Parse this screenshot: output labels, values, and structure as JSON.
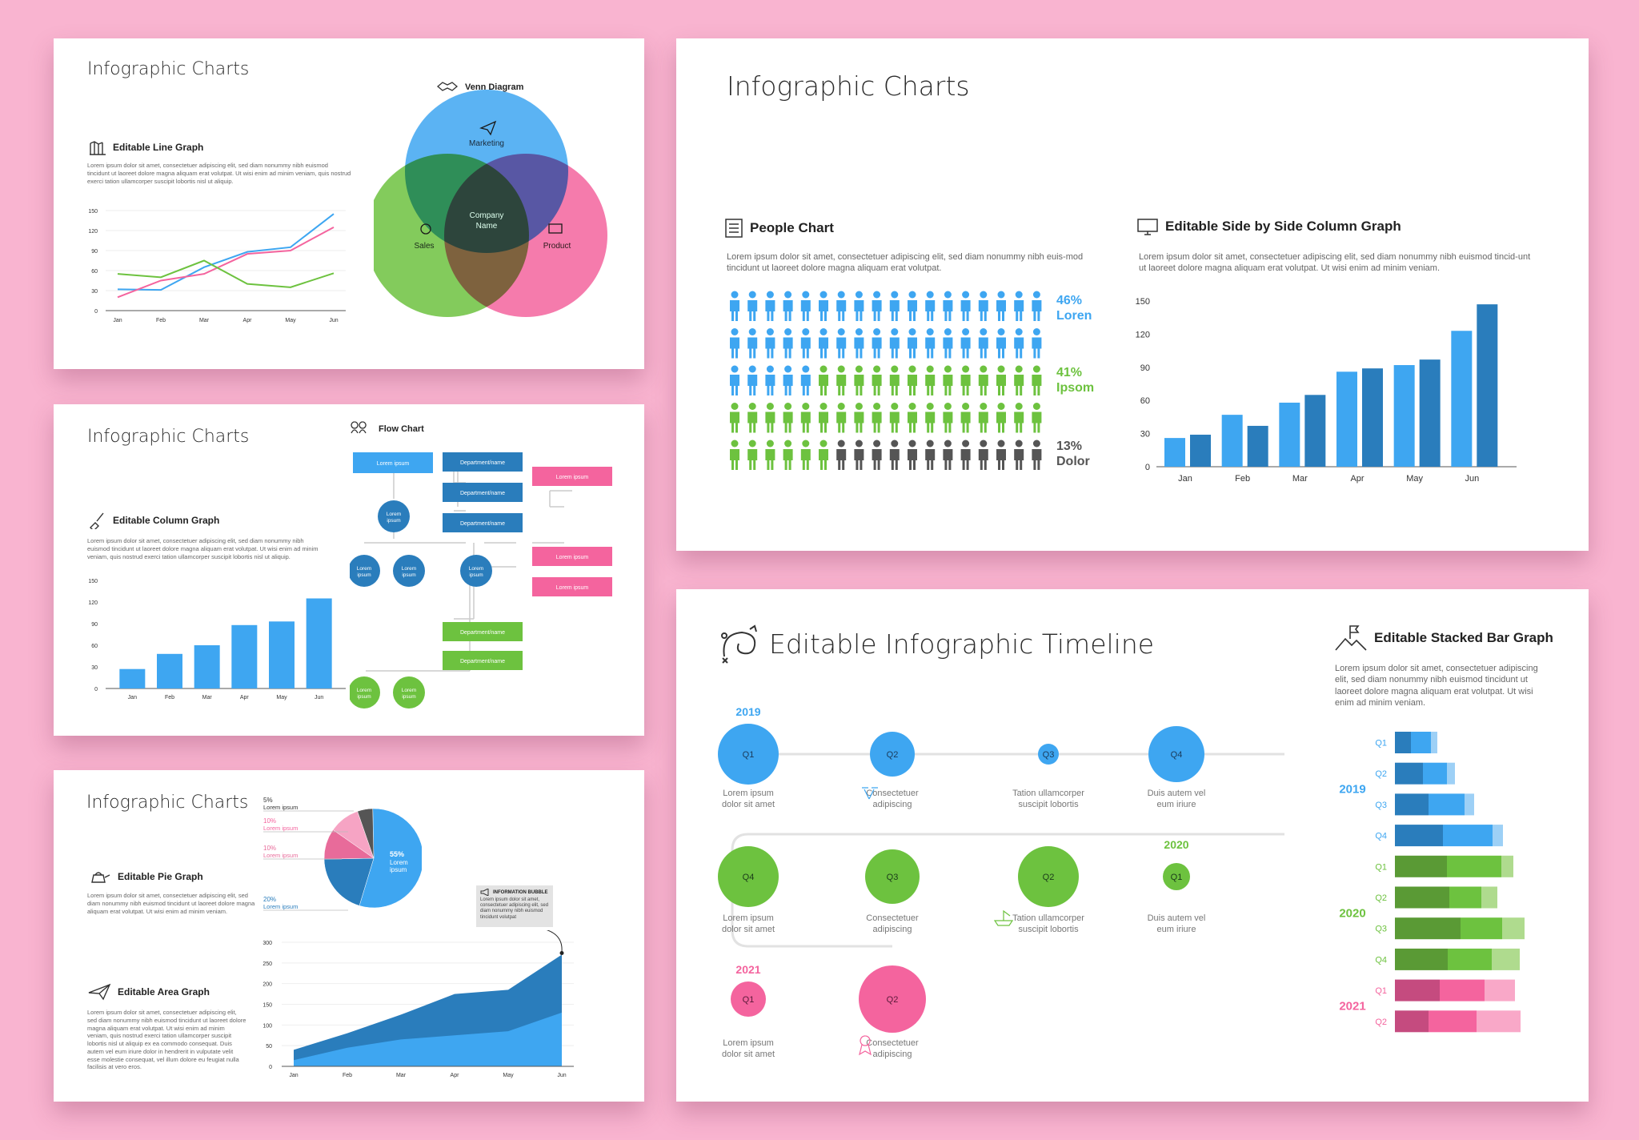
{
  "colors": {
    "blue": "#3ea6f1",
    "darkblue": "#2a7dbc",
    "green": "#6dc23f",
    "darkgreen": "#5a9a35",
    "pink": "#f4649e",
    "lightpink": "#f9a8c8",
    "lightblue": "#9dd0f6",
    "lightgreen": "#afdb8e",
    "gray": "#555555",
    "background": "#f9b4d0"
  },
  "s1": {
    "title": "Infographic Charts",
    "line": {
      "heading": "Editable Line Graph",
      "icon": "chart-icon",
      "desc": "Lorem ipsum dolor sit amet, consectetuer adipiscing elit, sed diam nonummy nibh euismod tincidunt ut laoreet dolore magna aliquam erat volutpat. Ut wisi enim ad minim veniam, quis nostrud exerci tation ullamcorper suscipit lobortis nisl ut aliquip."
    },
    "venn": {
      "heading": "Venn Diagram",
      "icon": "handshake-icon",
      "marketing": "Marketing",
      "sales": "Sales",
      "product": "Product",
      "center": [
        "Company",
        "Name"
      ]
    }
  },
  "s2": {
    "title": "Infographic Charts",
    "column": {
      "heading": "Editable Column Graph",
      "icon": "paintbrush-icon",
      "desc": "Lorem ipsum dolor sit amet, consectetuer adipiscing elit, sed diam nonummy nibh euismod tincidunt ut laoreet dolore magna aliquam erat volutpat. Ut wisi enim ad minim veniam, quis nostrud exerci tation ullamcorper suscipit lobortis nisl ut aliquip."
    },
    "flow": {
      "heading": "Flow Chart",
      "icon": "people-icon",
      "top": "Lorem ipsum",
      "dept": "Department/name",
      "pink": "Lorem ipsum",
      "circle": [
        "Lorem",
        "ipsum"
      ]
    }
  },
  "s3": {
    "title": "Infographic Charts",
    "pie": {
      "heading": "Editable Pie Graph",
      "icon": "kettle-icon",
      "desc": "Lorem ipsum dolor sit amet, consectetuer adipiscing elit, sed diam nonummy nibh euismod tincidunt ut laoreet dolore magna aliquam erat volutpat. Ut wisi enim ad minim veniam."
    },
    "area": {
      "heading": "Editable Area Graph",
      "icon": "paper-plane-icon",
      "desc": "Lorem ipsum dolor sit amet, consectetuer adipiscing elit, sed diam nonummy nibh euismod tincidunt ut laoreet dolore magna aliquam erat volutpat. Ut wisi enim ad minim veniam, quis nostrud exerci tation ullamcorper suscipit lobortis nisl ut aliquip ex ea commodo consequat. Duis autem vel eum iriure dolor in hendrerit in vulputate velit esse molestie consequat, vel illum dolore eu feugiat nulla facilisis at vero eros."
    },
    "bubble": {
      "title": "INFORMATION BUBBLE",
      "icon": "megaphone-icon",
      "text": "Lorem ipsum dolor sit amet, consectetuer adipiscing elit, sed diam nonummy nibh euismod tincidunt volutpat"
    }
  },
  "s4": {
    "title": "Infographic Charts",
    "people": {
      "heading": "People Chart",
      "icon": "list-icon",
      "desc": "Lorem ipsum dolor sit amet, consectetuer adipiscing elit, sed diam nonummy nibh euis-mod tincidunt ut laoreet dolore magna aliquam erat volutpat."
    },
    "side": {
      "heading": "Editable Side by Side Column Graph",
      "icon": "monitor-icon",
      "desc": "Lorem ipsum dolor sit amet, consectetuer adipiscing elit, sed diam nonummy nibh euismod tincid-unt ut laoreet dolore magna aliquam erat volutpat. Ut wisi enim ad minim veniam."
    }
  },
  "s5": {
    "title": "Editable Infographic Timeline",
    "icon": "strategy-icon",
    "stacked": {
      "heading": "Editable Stacked Bar Graph",
      "icon": "mountain-flag-icon",
      "desc": "Lorem ipsum dolor sit amet, consectetuer adipiscing elit, sed diam nonummy nibh euismod tincidunt ut laoreet dolore magna aliquam erat volutpat. Ut wisi enim ad minim veniam."
    },
    "timeline": {
      "years": [
        "2019",
        "2020",
        "2021"
      ],
      "row1": [
        {
          "q": "Q1",
          "text": [
            "Lorem ipsum",
            "dolor sit amet"
          ]
        },
        {
          "q": "Q2",
          "text": [
            "Consectetuer",
            "adipiscing"
          ],
          "icon": "toast-icon"
        },
        {
          "q": "Q3",
          "text": [
            "Tation ullamcorper",
            "suscipit lobortis"
          ]
        },
        {
          "q": "Q4",
          "text": [
            "Duis autem vel",
            "eum iriure"
          ]
        }
      ],
      "row2": [
        {
          "q": "Q4",
          "text": [
            "Lorem ipsum",
            "dolor sit amet"
          ]
        },
        {
          "q": "Q3",
          "text": [
            "Consectetuer",
            "adipiscing"
          ]
        },
        {
          "q": "Q2",
          "text": [
            "Tation ullamcorper",
            "suscipit lobortis"
          ],
          "icon": "boat-icon"
        },
        {
          "q": "Q1",
          "text": [
            "Duis autem vel",
            "eum iriure"
          ]
        }
      ],
      "row3": [
        {
          "q": "Q1",
          "text": [
            "Lorem ipsum",
            "dolor sit amet"
          ]
        },
        {
          "q": "Q2",
          "text": [
            "Consectetuer",
            "adipiscing"
          ],
          "icon": "award-icon"
        }
      ]
    }
  },
  "chart_data": [
    {
      "id": "line",
      "type": "line",
      "x": [
        "Jan",
        "Feb",
        "Mar",
        "Apr",
        "May",
        "Jun"
      ],
      "ylim": [
        0,
        150
      ],
      "yticks": [
        0,
        30,
        60,
        90,
        120,
        150
      ],
      "series": [
        {
          "color": "#3ea6f1",
          "values": [
            32,
            31,
            65,
            88,
            95,
            145
          ]
        },
        {
          "color": "#f4649e",
          "values": [
            20,
            45,
            55,
            85,
            90,
            125
          ]
        },
        {
          "color": "#6dc23f",
          "values": [
            55,
            50,
            75,
            40,
            35,
            56
          ]
        }
      ]
    },
    {
      "id": "column",
      "type": "bar",
      "categories": [
        "Jan",
        "Feb",
        "Mar",
        "Apr",
        "May",
        "Jun"
      ],
      "values": [
        27,
        48,
        60,
        88,
        93,
        125
      ],
      "ylim": [
        0,
        150
      ],
      "yticks": [
        0,
        30,
        60,
        90,
        120,
        150
      ]
    },
    {
      "id": "pie",
      "type": "pie",
      "slices": [
        {
          "value": 55,
          "label": "55%",
          "sublabel": [
            "Lorem",
            "ipsum"
          ],
          "color": "#3ea6f1"
        },
        {
          "value": 20,
          "label": "20%",
          "sublabel": "Lorem ipsum",
          "color": "#2a7dbc"
        },
        {
          "value": 10,
          "label": "10%",
          "sublabel": "Lorem ipsum",
          "color": "#e86b9a"
        },
        {
          "value": 10,
          "label": "10%",
          "sublabel": "Lorem ipsum",
          "color": "#f6a4c4"
        },
        {
          "value": 5,
          "label": "5%",
          "sublabel": "Lorem ipsum",
          "color": "#555555"
        }
      ]
    },
    {
      "id": "area",
      "type": "area",
      "x": [
        "Jan",
        "Feb",
        "Mar",
        "Apr",
        "May",
        "Jun"
      ],
      "ylim": [
        0,
        300
      ],
      "yticks": [
        0,
        50,
        100,
        150,
        200,
        250,
        300
      ],
      "series": [
        {
          "color": "#3ea6f1",
          "values": [
            15,
            45,
            65,
            75,
            85,
            130
          ]
        },
        {
          "color": "#2a7dbc",
          "values": [
            40,
            80,
            125,
            175,
            185,
            270
          ]
        }
      ]
    },
    {
      "id": "people",
      "type": "table",
      "rows": 5,
      "cols": 18,
      "counts": {
        "blue": 41,
        "green": 37,
        "gray": 12
      },
      "legend": [
        {
          "label": "46%",
          "name": "Loren",
          "color": "#3ea6f1"
        },
        {
          "label": "41%",
          "name": "Ipsom",
          "color": "#6dc23f"
        },
        {
          "label": "13%",
          "name": "Dolor",
          "color": "#555555"
        }
      ]
    },
    {
      "id": "sidebyside",
      "type": "bar",
      "categories": [
        "Jan",
        "Feb",
        "Mar",
        "Apr",
        "May",
        "Jun"
      ],
      "ylim": [
        0,
        150
      ],
      "yticks": [
        0,
        30,
        60,
        90,
        120,
        150
      ],
      "series": [
        {
          "color": "#3ea6f1",
          "values": [
            26,
            47,
            58,
            86,
            92,
            123
          ]
        },
        {
          "color": "#2a7dbc",
          "values": [
            29,
            37,
            65,
            89,
            97,
            147
          ]
        }
      ]
    },
    {
      "id": "stacked",
      "type": "bar",
      "orientation": "horizontal",
      "groups": [
        {
          "year": "2019",
          "color": "#3ea6f1"
        },
        {
          "year": "2020",
          "color": "#6dc23f"
        },
        {
          "year": "2021",
          "color": "#f4649e"
        }
      ],
      "rows": [
        {
          "year": "2019",
          "q": "Q1",
          "values": [
            20,
            25,
            8
          ]
        },
        {
          "year": "2019",
          "q": "Q2",
          "values": [
            35,
            30,
            10
          ]
        },
        {
          "year": "2019",
          "q": "Q3",
          "values": [
            42,
            45,
            12
          ]
        },
        {
          "year": "2019",
          "q": "Q4",
          "values": [
            60,
            62,
            13
          ]
        },
        {
          "year": "2020",
          "q": "Q1",
          "values": [
            65,
            68,
            15
          ]
        },
        {
          "year": "2020",
          "q": "Q2",
          "values": [
            68,
            40,
            20
          ]
        },
        {
          "year": "2020",
          "q": "Q3",
          "values": [
            82,
            52,
            28
          ]
        },
        {
          "year": "2020",
          "q": "Q4",
          "values": [
            66,
            55,
            35
          ]
        },
        {
          "year": "2021",
          "q": "Q1",
          "values": [
            56,
            56,
            38
          ]
        },
        {
          "year": "2021",
          "q": "Q2",
          "values": [
            42,
            60,
            55
          ]
        }
      ]
    }
  ]
}
